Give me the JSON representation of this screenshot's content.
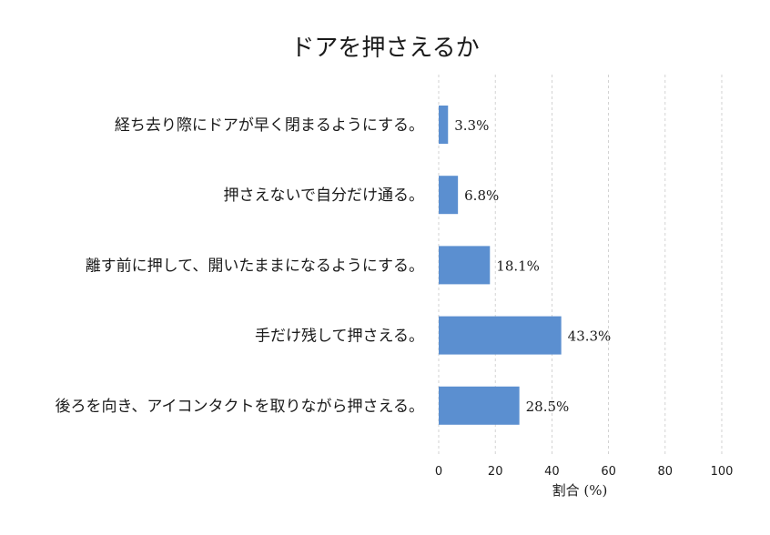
{
  "chart_data": {
    "type": "bar",
    "orientation": "horizontal",
    "title": "ドアを押さえるか",
    "categories": [
      "経ち去り際にドアが早く閉まるようにする。",
      "押さえないで自分だけ通る。",
      "離す前に押して、開いたままになるようにする。",
      "手だけ残して押さえる。",
      "後ろを向き、アイコンタクトを取りながら押さえる。"
    ],
    "values": [
      3.3,
      6.8,
      18.1,
      43.3,
      28.5
    ],
    "value_labels": [
      "3.3%",
      "6.8%",
      "18.1%",
      "43.3%",
      "28.5%"
    ],
    "xlabel": "割合 (%)",
    "ylabel": "",
    "xlim": [
      0,
      100
    ],
    "xticks": [
      0,
      20,
      40,
      60,
      80,
      100
    ],
    "grid": "x, dashed",
    "legend": "none",
    "colors": {
      "bar": "#5b8fd0",
      "text": "#1a1a1a",
      "grid": "#c8c8c8"
    }
  }
}
